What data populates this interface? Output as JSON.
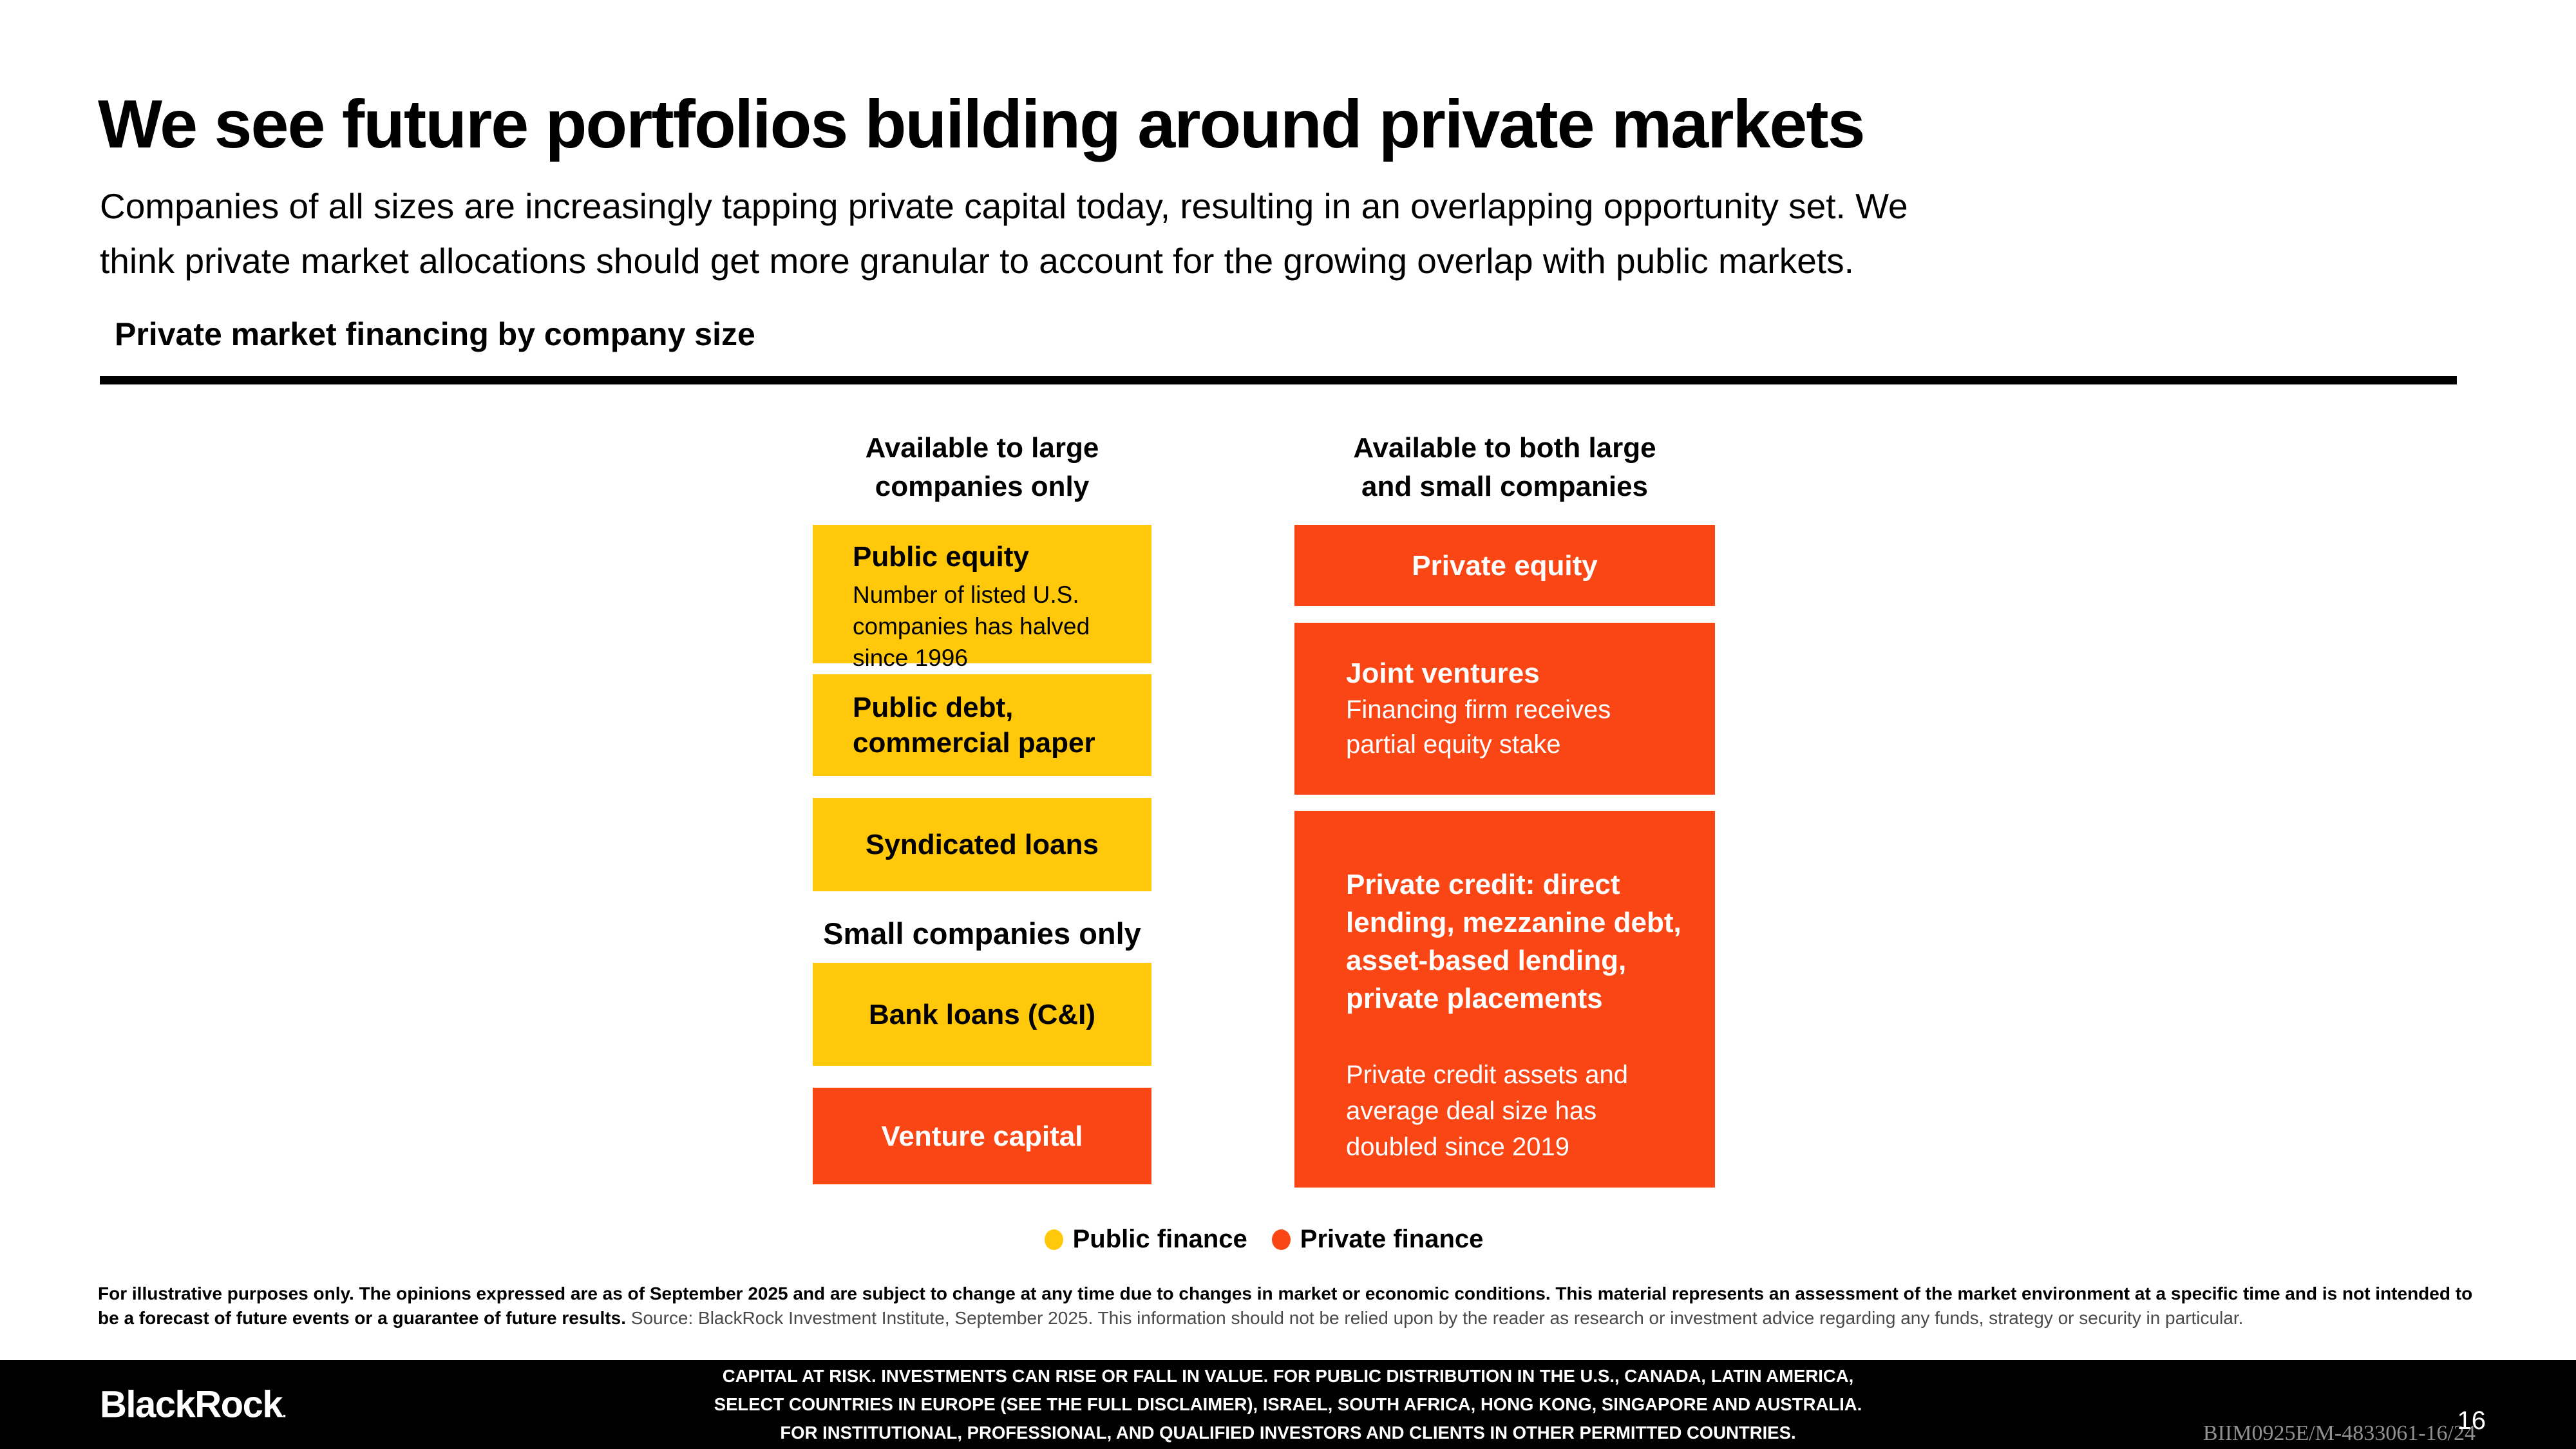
{
  "slide": {
    "title": "We see future portfolios building around private markets",
    "subtitle": "Companies of all sizes are increasingly tapping private capital today, resulting in an overlapping opportunity set. We\nthink private market allocations should get more granular to account for the growing overlap with public markets.",
    "section_heading": "Private market financing by company size"
  },
  "colors": {
    "public_yellow": "#FFC80A",
    "private_orange": "#FA4515",
    "footer_black": "#000000"
  },
  "diagram": {
    "left": {
      "header": "Available to large\ncompanies only",
      "subheader": "Small companies only",
      "boxes": {
        "public_equity": {
          "title": "Public equity",
          "body": "Number of listed U.S.\ncompanies has halved\nsince 1996"
        },
        "public_debt": {
          "title": "Public debt,\ncommercial paper"
        },
        "syndicated_loans": {
          "title": "Syndicated loans"
        },
        "bank_loans": {
          "title": "Bank loans (C&I)"
        },
        "venture_capital": {
          "title": "Venture capital"
        }
      }
    },
    "right": {
      "header": "Available to both large\nand small companies",
      "boxes": {
        "private_equity": {
          "title": "Private equity"
        },
        "joint_ventures": {
          "title": "Joint ventures",
          "body": "Financing firm receives\npartial equity stake"
        },
        "private_credit": {
          "title": "Private credit: direct\nlending, mezzanine debt,\nasset-based lending,\nprivate placements",
          "body": "Private credit assets and\naverage deal size has\ndoubled since 2019"
        }
      }
    }
  },
  "legend": {
    "items": [
      {
        "label": "Public finance",
        "color": "#FFC80A"
      },
      {
        "label": "Private finance",
        "color": "#FA4515"
      }
    ]
  },
  "footnote": {
    "bold": "For illustrative purposes only. The opinions expressed are as of September 2025 and are subject to change at any time due to changes in market or economic conditions. This material represents an assessment of the market environment at a specific time and is not intended to be a forecast of future events or a guarantee of future results.",
    "regular": " Source: BlackRock Investment Institute, September 2025. This information should not be relied upon by the reader as research or investment advice regarding any funds, strategy or security in particular."
  },
  "footer": {
    "logo": "BlackRock",
    "logo_mark": ".",
    "disclaimer": "CAPITAL AT RISK. INVESTMENTS CAN RISE OR FALL IN VALUE. FOR PUBLIC DISTRIBUTION IN THE U.S., CANADA, LATIN AMERICA,\nSELECT COUNTRIES IN EUROPE (SEE THE FULL DISCLAIMER), ISRAEL, SOUTH AFRICA, HONG KONG, SINGAPORE AND AUSTRALIA.\nFOR INSTITUTIONAL, PROFESSIONAL, AND QUALIFIED INVESTORS AND CLIENTS IN OTHER PERMITTED COUNTRIES.",
    "code": "BIIM0925E/M-4833061-16/24",
    "page": "16"
  }
}
